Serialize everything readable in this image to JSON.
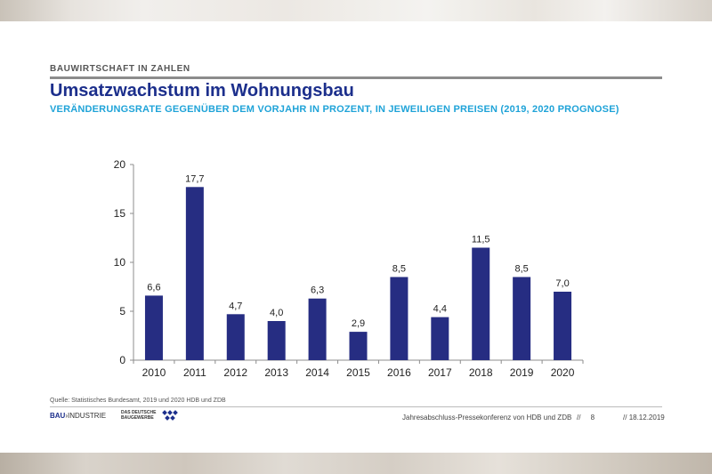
{
  "header": {
    "section": "BAUWIRTSCHAFT IN ZAHLEN",
    "title": "Umsatzwachstum im Wohnungsbau",
    "subtitle": "VERÄNDERUNGSRATE GEGENÜBER DEM VORJAHR IN PROZENT, IN JEWEILIGEN PREISEN (2019, 2020 PROGNOSE)"
  },
  "chart_data": {
    "type": "bar",
    "categories": [
      "2010",
      "2011",
      "2012",
      "2013",
      "2014",
      "2015",
      "2016",
      "2017",
      "2018",
      "2019",
      "2020"
    ],
    "values": [
      6.6,
      17.7,
      4.7,
      4.0,
      6.3,
      2.9,
      8.5,
      4.4,
      11.5,
      8.5,
      7.0
    ],
    "data_labels": [
      "6,6",
      "17,7",
      "4,7",
      "4,0",
      "6,3",
      "2,9",
      "8,5",
      "4,4",
      "11,5",
      "8,5",
      "7,0"
    ],
    "yticks": [
      0,
      5,
      10,
      15,
      20
    ],
    "ylim": [
      0,
      20
    ],
    "grid": false,
    "legend": "none",
    "bar_color": "#262d82"
  },
  "footer": {
    "source": "Quelle: Statistisches Bundesamt, 2019 und 2020 HDB und ZDB",
    "logo_left_bold": "BAU",
    "logo_left_rest": "INDUSTRIE",
    "logo_right_line1": "DAS DEUTSCHE",
    "logo_right_line2": "BAUGEWERBE",
    "event": "Jahresabschluss-Pressekonferenz von HDB und ZDB",
    "page_number": "8",
    "separator": "//",
    "date": "18.12.2019"
  }
}
